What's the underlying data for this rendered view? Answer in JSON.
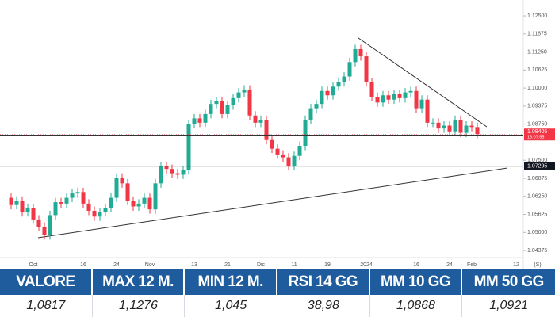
{
  "chart_data": {
    "type": "candlestick",
    "categories": [
      null,
      null,
      null,
      null,
      "Oct",
      null,
      null,
      null,
      null,
      null,
      null,
      null,
      null,
      "16",
      null,
      null,
      null,
      null,
      null,
      "24",
      null,
      null,
      null,
      null,
      null,
      "Nov",
      null,
      null,
      null,
      null,
      null,
      null,
      null,
      "13",
      null,
      null,
      null,
      null,
      null,
      "21",
      null,
      null,
      null,
      null,
      null,
      "Dic",
      null,
      null,
      null,
      null,
      null,
      "11",
      null,
      null,
      null,
      null,
      null,
      "19",
      null,
      null,
      null,
      null,
      null,
      null,
      "2024",
      null,
      null,
      null,
      null,
      null,
      null,
      null,
      null,
      "16",
      null,
      null,
      null,
      null,
      null,
      "24",
      null,
      null,
      null,
      "Feb",
      null,
      null,
      null,
      null,
      null,
      null,
      null,
      "12"
    ],
    "open": [
      1.062,
      1.0595,
      1.061,
      1.057,
      1.0585,
      1.0545,
      1.052,
      1.049,
      1.056,
      1.0605,
      1.06,
      1.062,
      1.0635,
      1.064,
      1.06,
      1.0575,
      1.0555,
      1.057,
      1.0585,
      1.062,
      1.069,
      1.067,
      1.061,
      1.059,
      1.06,
      1.062,
      1.058,
      1.067,
      1.073,
      1.072,
      1.0705,
      1.07,
      1.0715,
      1.0875,
      1.0895,
      1.088,
      1.091,
      1.0945,
      1.0955,
      1.091,
      1.094,
      1.0965,
      1.0985,
      1.0995,
      1.0905,
      1.088,
      1.089,
      1.082,
      1.079,
      1.077,
      1.076,
      1.073,
      1.0765,
      1.08,
      1.089,
      1.093,
      1.0945,
      1.099,
      1.0975,
      1.1005,
      1.102,
      1.104,
      1.109,
      1.1135,
      1.111,
      1.102,
      1.097,
      1.095,
      1.0975,
      1.096,
      1.098,
      1.0965,
      1.0985,
      1.099,
      1.093,
      1.096,
      1.088,
      1.088,
      1.086,
      1.087,
      1.085,
      1.089,
      1.0845,
      1.087,
      1.0865,
      null,
      null,
      null,
      null,
      null,
      null,
      null
    ],
    "high": [
      1.0635,
      1.0625,
      1.0625,
      1.06,
      1.06,
      1.056,
      1.0535,
      1.0575,
      1.062,
      1.062,
      1.0635,
      1.065,
      1.0655,
      1.0655,
      1.0615,
      1.059,
      1.0585,
      1.06,
      1.0635,
      1.0705,
      1.0705,
      1.0685,
      1.0625,
      1.0615,
      1.0635,
      1.0635,
      1.0685,
      1.0745,
      1.0745,
      1.0735,
      1.072,
      1.073,
      1.089,
      1.091,
      1.091,
      1.0925,
      1.096,
      1.097,
      1.097,
      1.0955,
      1.098,
      1.1,
      1.101,
      1.101,
      1.092,
      1.0905,
      1.0905,
      1.0835,
      1.0805,
      1.0785,
      1.0775,
      1.078,
      1.0815,
      1.0905,
      1.0945,
      1.096,
      1.1005,
      1.1005,
      1.102,
      1.1035,
      1.1055,
      1.1105,
      1.115,
      1.115,
      1.1125,
      1.1035,
      1.0985,
      1.099,
      1.099,
      1.0995,
      1.0995,
      1.1,
      1.1005,
      1.1005,
      1.0975,
      1.0975,
      1.0895,
      1.0895,
      1.0885,
      1.0885,
      1.0905,
      1.0905,
      1.0885,
      1.0885,
      1.088,
      null,
      null,
      null,
      null,
      null,
      null,
      null
    ],
    "low": [
      1.058,
      1.058,
      1.0555,
      1.0555,
      1.053,
      1.0505,
      1.0475,
      1.0475,
      1.0545,
      1.0585,
      1.0585,
      1.0605,
      1.062,
      1.0585,
      1.056,
      1.054,
      1.054,
      1.0555,
      1.057,
      1.0605,
      1.0655,
      1.0595,
      1.0575,
      1.0575,
      1.0585,
      1.0565,
      1.0565,
      1.0655,
      1.0705,
      1.069,
      1.0685,
      1.0685,
      1.07,
      1.086,
      1.0865,
      1.0865,
      1.0895,
      1.093,
      1.0895,
      1.0895,
      1.0925,
      1.095,
      1.097,
      1.089,
      1.0865,
      1.0865,
      1.0805,
      1.0775,
      1.0755,
      1.0745,
      1.0715,
      1.0715,
      1.075,
      1.0785,
      1.0875,
      1.0915,
      1.093,
      1.096,
      1.096,
      1.099,
      1.1005,
      1.1025,
      1.1075,
      1.1095,
      1.1005,
      1.0955,
      1.0935,
      1.0935,
      1.0945,
      1.0945,
      1.095,
      1.095,
      1.097,
      1.0915,
      1.0915,
      1.0865,
      1.0865,
      1.0845,
      1.0845,
      1.0835,
      1.0835,
      1.083,
      1.083,
      1.085,
      1.0826,
      null,
      null,
      null,
      null,
      null,
      null,
      null
    ],
    "close": [
      1.0595,
      1.061,
      1.057,
      1.0585,
      1.0545,
      1.052,
      1.049,
      1.056,
      1.0605,
      1.06,
      1.062,
      1.0635,
      1.064,
      1.06,
      1.0575,
      1.0555,
      1.057,
      1.0585,
      1.062,
      1.069,
      1.067,
      1.061,
      1.059,
      1.06,
      1.062,
      1.058,
      1.067,
      1.073,
      1.072,
      1.0705,
      1.07,
      1.0715,
      1.0875,
      1.0895,
      1.088,
      1.091,
      1.0945,
      1.0955,
      1.091,
      1.094,
      1.0965,
      1.0985,
      1.0995,
      1.0905,
      1.088,
      1.089,
      1.082,
      1.079,
      1.077,
      1.076,
      1.073,
      1.0765,
      1.08,
      1.089,
      1.093,
      1.0945,
      1.099,
      1.0975,
      1.1005,
      1.102,
      1.104,
      1.109,
      1.1135,
      1.111,
      1.102,
      1.097,
      1.095,
      1.0975,
      1.096,
      1.098,
      1.0965,
      1.0985,
      1.099,
      1.093,
      1.096,
      1.088,
      1.088,
      1.086,
      1.087,
      1.085,
      1.089,
      1.0845,
      1.087,
      1.0865,
      1.0841,
      null,
      null,
      null,
      null,
      null,
      null,
      null
    ],
    "up_color": "#22ab94",
    "down_color": "#f23645",
    "ylim": [
      1.0413,
      1.1305
    ],
    "yticks": [
      {
        "value": 1.125,
        "label": "1.12500"
      },
      {
        "value": 1.11875,
        "label": "1.11875"
      },
      {
        "value": 1.1125,
        "label": "1.11250"
      },
      {
        "value": 1.10625,
        "label": "1.10625"
      },
      {
        "value": 1.1,
        "label": "1.10000"
      },
      {
        "value": 1.09375,
        "label": "1.09375"
      },
      {
        "value": 1.0875,
        "label": "1.08750"
      },
      {
        "value": 1.075,
        "label": "1.07500"
      },
      {
        "value": 1.06875,
        "label": "1.06875"
      },
      {
        "value": 1.0625,
        "label": "1.06250"
      },
      {
        "value": 1.05625,
        "label": "1.05625"
      },
      {
        "value": 1.05,
        "label": "1.05000"
      },
      {
        "value": 1.04375,
        "label": "1.04375"
      }
    ],
    "grid": false,
    "levels": [
      {
        "value": 1.0837,
        "label": "1.08370"
      },
      {
        "value": 1.07295,
        "label": "1.07295"
      }
    ],
    "last_price": {
      "value": 1.08405,
      "label": "1.08405"
    },
    "countdown": "16:07:55",
    "axis_corner": "(S)"
  },
  "table": {
    "headers": [
      "VALORE",
      "MAX 12 M.",
      "MIN 12 M.",
      "RSI 14 GG",
      "MM 10 GG",
      "MM 50 GG"
    ],
    "rows": [
      [
        "1,0817",
        "1,1276",
        "1,045",
        "38,98",
        "1,0868",
        "1,0921"
      ]
    ]
  }
}
